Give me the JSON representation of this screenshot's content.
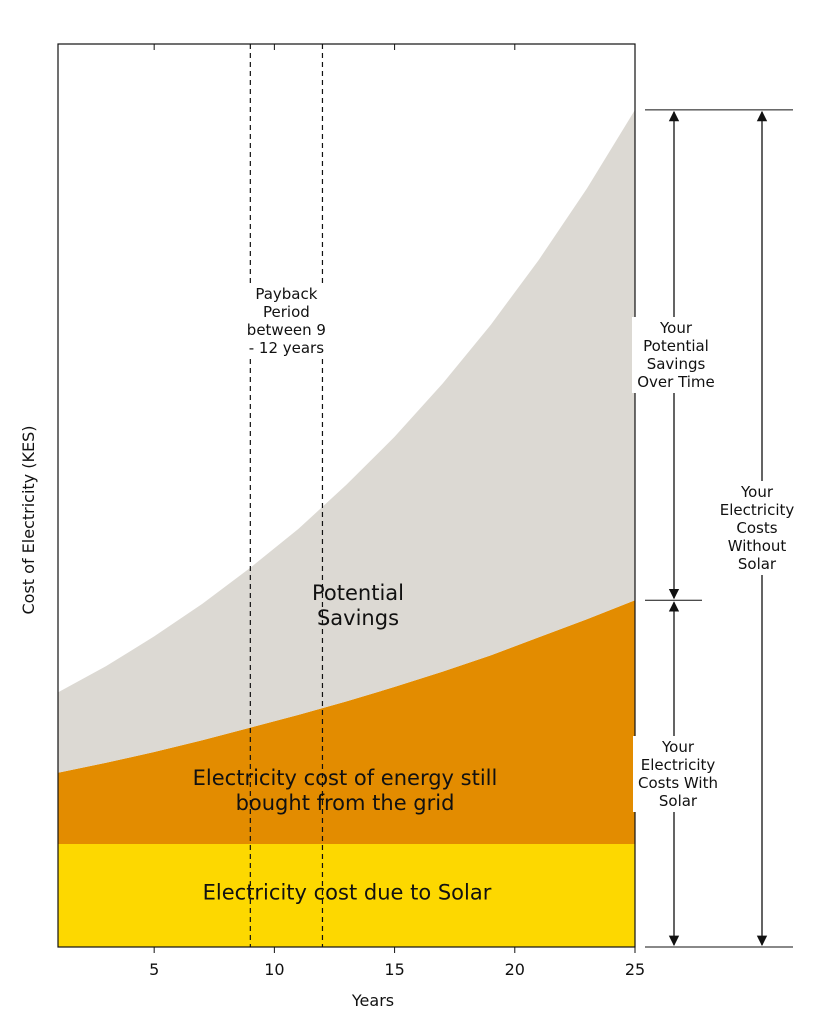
{
  "chart_data": {
    "type": "stacked_area",
    "x_label": "Years",
    "y_label": "Cost of Electricity (KES)",
    "x": [
      1,
      3,
      5,
      7,
      9,
      11,
      13,
      15,
      17,
      19,
      21,
      23,
      25
    ],
    "xlim": [
      1,
      25
    ],
    "xticks": [
      5,
      10,
      15,
      20,
      25
    ],
    "ylim": [
      0,
      100
    ],
    "series": [
      {
        "name": "Electricity cost due to Solar",
        "color": "#fdd800",
        "values": [
          11.4,
          11.4,
          11.4,
          11.4,
          11.4,
          11.4,
          11.4,
          11.4,
          11.4,
          11.4,
          11.4,
          11.4,
          11.4
        ]
      },
      {
        "name": "Electricity cost of energy still bought from the grid",
        "color": "#e38c00",
        "values": [
          7.9,
          9.0,
          10.2,
          11.5,
          12.9,
          14.3,
          15.8,
          17.4,
          19.1,
          20.9,
          22.9,
          24.9,
          27.0
        ]
      },
      {
        "name": "Potential Savings",
        "color": "#dcd9d3",
        "values": [
          8.9,
          10.7,
          12.8,
          15.1,
          17.7,
          20.6,
          24.0,
          27.7,
          31.9,
          36.6,
          41.8,
          47.7,
          54.3
        ]
      }
    ],
    "payback_lines": [
      9,
      12
    ],
    "annotations": [
      "Payback Period between 9 - 12 years",
      "Your Potential Savings Over Time",
      "Your Electricity Costs With Solar",
      "Your Electricity Costs Without Solar"
    ]
  }
}
